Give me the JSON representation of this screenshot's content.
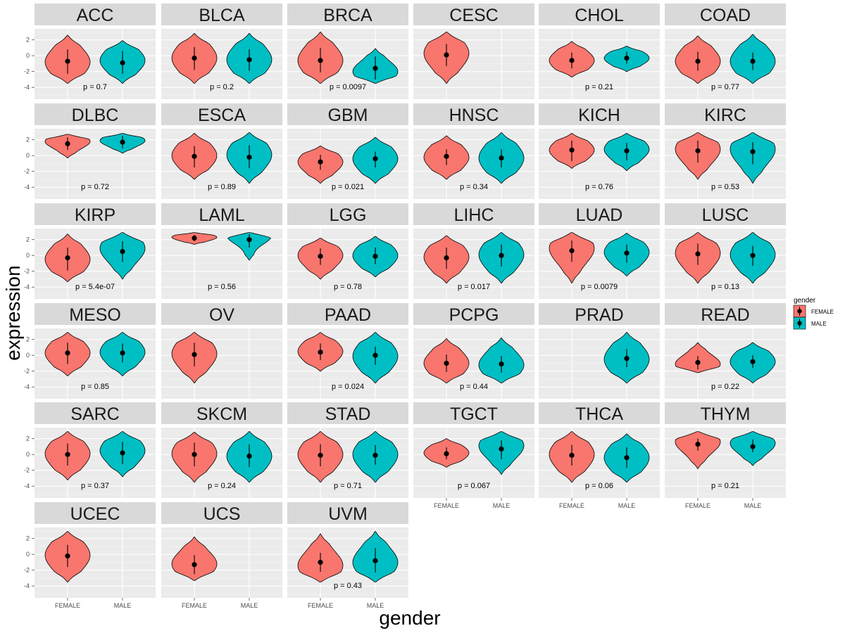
{
  "chart_data": {
    "type": "violin",
    "xlabel": "gender",
    "ylabel": "expression",
    "categories": [
      "FEMALE",
      "MALE"
    ],
    "ylim": [
      -5.5,
      3.4
    ],
    "yticks": [
      2,
      0,
      -2,
      -4
    ],
    "ytick_labels": [
      "2",
      "0",
      "-2",
      "-4"
    ],
    "legend": {
      "title": "gender",
      "position": "right",
      "entries": [
        {
          "label": "FEMALE",
          "color": "#F8766D"
        },
        {
          "label": "MALE",
          "color": "#00BFC4"
        }
      ]
    },
    "outline_color": "#000000",
    "panel_bg": "#ebebeb",
    "strip_bg": "#d9d9d9",
    "panels": [
      {
        "name": "ACC",
        "p": "p = 0.7",
        "female": {
          "min": -3.5,
          "max": 2.6,
          "point": -0.7,
          "lo": -2.3,
          "hi": 0.8,
          "peak": -0.8
        },
        "male": {
          "min": -3.5,
          "max": 1.9,
          "point": -0.9,
          "lo": -2.3,
          "hi": 0.6,
          "peak": -0.6
        }
      },
      {
        "name": "BLCA",
        "p": "p = 0.2",
        "female": {
          "min": -3.5,
          "max": 2.8,
          "point": -0.3,
          "lo": -1.8,
          "hi": 1.1,
          "peak": -0.3
        },
        "male": {
          "min": -3.5,
          "max": 2.8,
          "point": -0.5,
          "lo": -1.9,
          "hi": 0.8,
          "peak": -0.5
        }
      },
      {
        "name": "BRCA",
        "p": "p = 0.0097",
        "female": {
          "min": -3.5,
          "max": 3.0,
          "point": -0.6,
          "lo": -2.1,
          "hi": 1.0,
          "peak": -0.6
        },
        "male": {
          "min": -3.5,
          "max": 0.9,
          "point": -1.6,
          "lo": -3.0,
          "hi": -0.1,
          "peak": -2.0
        }
      },
      {
        "name": "CESC",
        "p": "",
        "female": {
          "min": -3.5,
          "max": 3.0,
          "point": 0.1,
          "lo": -1.3,
          "hi": 1.5,
          "peak": 0.3
        },
        "male": null
      },
      {
        "name": "CHOL",
        "p": "p = 0.21",
        "female": {
          "min": -2.7,
          "max": 1.8,
          "point": -0.6,
          "lo": -1.6,
          "hi": 0.4,
          "peak": -0.6
        },
        "male": {
          "min": -2.0,
          "max": 1.2,
          "point": -0.3,
          "lo": -1.0,
          "hi": 0.5,
          "peak": -0.3
        }
      },
      {
        "name": "COAD",
        "p": "p = 0.77",
        "female": {
          "min": -3.5,
          "max": 2.5,
          "point": -0.7,
          "lo": -1.9,
          "hi": 0.5,
          "peak": -0.7
        },
        "male": {
          "min": -3.5,
          "max": 2.7,
          "point": -0.7,
          "lo": -1.8,
          "hi": 0.4,
          "peak": -0.7
        }
      },
      {
        "name": "DLBC",
        "p": "p = 0.72",
        "female": {
          "min": -0.3,
          "max": 2.7,
          "point": 1.5,
          "lo": 0.7,
          "hi": 2.3,
          "peak": 1.8
        },
        "male": {
          "min": 0.3,
          "max": 2.8,
          "point": 1.7,
          "lo": 0.9,
          "hi": 2.5,
          "peak": 1.9
        }
      },
      {
        "name": "ESCA",
        "p": "p = 0.89",
        "female": {
          "min": -3.0,
          "max": 2.8,
          "point": -0.1,
          "lo": -1.5,
          "hi": 1.2,
          "peak": 0.0
        },
        "male": {
          "min": -3.5,
          "max": 2.9,
          "point": -0.2,
          "lo": -1.6,
          "hi": 1.3,
          "peak": 0.1
        }
      },
      {
        "name": "GBM",
        "p": "p = 0.021",
        "female": {
          "min": -3.5,
          "max": 1.2,
          "point": -0.8,
          "lo": -1.8,
          "hi": 0.1,
          "peak": -0.8
        },
        "male": {
          "min": -3.5,
          "max": 2.3,
          "point": -0.4,
          "lo": -1.5,
          "hi": 0.5,
          "peak": -0.4
        }
      },
      {
        "name": "HNSC",
        "p": "p = 0.34",
        "female": {
          "min": -3.0,
          "max": 2.5,
          "point": -0.1,
          "lo": -1.2,
          "hi": 0.8,
          "peak": -0.2
        },
        "male": {
          "min": -3.5,
          "max": 2.9,
          "point": -0.3,
          "lo": -1.5,
          "hi": 0.8,
          "peak": -0.3
        }
      },
      {
        "name": "KICH",
        "p": "p = 0.76",
        "female": {
          "min": -1.6,
          "max": 2.8,
          "point": 0.7,
          "lo": -0.7,
          "hi": 1.9,
          "peak": 0.7
        },
        "male": {
          "min": -1.9,
          "max": 2.8,
          "point": 0.6,
          "lo": -0.6,
          "hi": 1.6,
          "peak": 0.8
        }
      },
      {
        "name": "KIRC",
        "p": "p = 0.53",
        "female": {
          "min": -3.0,
          "max": 2.9,
          "point": 0.6,
          "lo": -0.9,
          "hi": 1.9,
          "peak": 0.8
        },
        "male": {
          "min": -3.5,
          "max": 2.9,
          "point": 0.5,
          "lo": -1.1,
          "hi": 1.7,
          "peak": 0.8
        }
      },
      {
        "name": "KIRP",
        "p": "p = 5.4e-07",
        "female": {
          "min": -3.3,
          "max": 2.7,
          "point": -0.3,
          "lo": -1.9,
          "hi": 1.0,
          "peak": -0.5
        },
        "male": {
          "min": -3.0,
          "max": 2.9,
          "point": 0.5,
          "lo": -0.8,
          "hi": 1.8,
          "peak": 0.9
        }
      },
      {
        "name": "LAML",
        "p": "p = 0.56",
        "female": {
          "min": 1.4,
          "max": 2.9,
          "point": 2.2,
          "lo": 1.8,
          "hi": 2.6,
          "peak": 2.3
        },
        "male": {
          "min": -0.6,
          "max": 2.9,
          "point": 2.0,
          "lo": 1.0,
          "hi": 2.7,
          "peak": 2.5
        }
      },
      {
        "name": "LGG",
        "p": "p = 0.78",
        "female": {
          "min": -3.0,
          "max": 2.2,
          "point": -0.1,
          "lo": -1.2,
          "hi": 0.9,
          "peak": 0.0
        },
        "male": {
          "min": -2.7,
          "max": 2.4,
          "point": -0.1,
          "lo": -1.1,
          "hi": 1.0,
          "peak": 0.0
        }
      },
      {
        "name": "LIHC",
        "p": "p = 0.017",
        "female": {
          "min": -3.5,
          "max": 2.5,
          "point": -0.3,
          "lo": -1.7,
          "hi": 1.0,
          "peak": -0.2
        },
        "male": {
          "min": -3.5,
          "max": 2.9,
          "point": 0.0,
          "lo": -1.4,
          "hi": 1.4,
          "peak": 0.1
        }
      },
      {
        "name": "LUAD",
        "p": "p = 0.0079",
        "female": {
          "min": -3.5,
          "max": 2.9,
          "point": 0.6,
          "lo": -0.8,
          "hi": 1.9,
          "peak": 0.9
        },
        "male": {
          "min": -2.6,
          "max": 2.8,
          "point": 0.3,
          "lo": -0.9,
          "hi": 1.4,
          "peak": 0.4
        }
      },
      {
        "name": "LUSC",
        "p": "p = 0.13",
        "female": {
          "min": -3.5,
          "max": 2.9,
          "point": 0.2,
          "lo": -1.2,
          "hi": 1.5,
          "peak": 0.3
        },
        "male": {
          "min": -3.5,
          "max": 2.9,
          "point": 0.0,
          "lo": -1.3,
          "hi": 1.2,
          "peak": 0.1
        }
      },
      {
        "name": "MESO",
        "p": "p = 0.85",
        "female": {
          "min": -2.6,
          "max": 2.9,
          "point": 0.3,
          "lo": -1.1,
          "hi": 1.6,
          "peak": 0.3
        },
        "male": {
          "min": -2.6,
          "max": 2.9,
          "point": 0.3,
          "lo": -0.9,
          "hi": 1.5,
          "peak": 0.4
        }
      },
      {
        "name": "OV",
        "p": "",
        "female": {
          "min": -3.5,
          "max": 2.9,
          "point": 0.1,
          "lo": -1.4,
          "hi": 1.6,
          "peak": 0.2
        },
        "male": null
      },
      {
        "name": "PAAD",
        "p": "p = 0.024",
        "female": {
          "min": -2.0,
          "max": 2.9,
          "point": 0.4,
          "lo": -0.6,
          "hi": 1.5,
          "peak": 0.5
        },
        "male": {
          "min": -3.5,
          "max": 2.9,
          "point": 0.0,
          "lo": -1.2,
          "hi": 1.1,
          "peak": -0.1
        }
      },
      {
        "name": "PCPG",
        "p": "p = 0.44",
        "female": {
          "min": -3.5,
          "max": 2.1,
          "point": -1.0,
          "lo": -2.1,
          "hi": 0.1,
          "peak": -1.0
        },
        "male": {
          "min": -3.5,
          "max": 2.2,
          "point": -1.1,
          "lo": -2.2,
          "hi": -0.1,
          "peak": -1.2
        }
      },
      {
        "name": "PRAD",
        "p": "",
        "female": null,
        "male": {
          "min": -3.5,
          "max": 2.9,
          "point": -0.4,
          "lo": -1.5,
          "hi": 0.8,
          "peak": -0.5
        }
      },
      {
        "name": "READ",
        "p": "p = 0.22",
        "female": {
          "min": -2.2,
          "max": 1.6,
          "point": -0.9,
          "lo": -1.8,
          "hi": -0.1,
          "peak": -1.1
        },
        "male": {
          "min": -3.5,
          "max": 1.6,
          "point": -0.8,
          "lo": -1.6,
          "hi": 0.0,
          "peak": -0.8
        }
      },
      {
        "name": "SARC",
        "p": "p = 0.37",
        "female": {
          "min": -3.2,
          "max": 2.9,
          "point": 0.0,
          "lo": -1.4,
          "hi": 1.4,
          "peak": 0.1
        },
        "male": {
          "min": -2.8,
          "max": 2.9,
          "point": 0.2,
          "lo": -1.2,
          "hi": 1.6,
          "peak": 0.5
        }
      },
      {
        "name": "SKCM",
        "p": "p = 0.24",
        "female": {
          "min": -3.5,
          "max": 2.8,
          "point": 0.0,
          "lo": -1.5,
          "hi": 1.5,
          "peak": 0.1
        },
        "male": {
          "min": -3.5,
          "max": 2.9,
          "point": -0.2,
          "lo": -1.6,
          "hi": 1.3,
          "peak": -0.2
        }
      },
      {
        "name": "STAD",
        "p": "p = 0.71",
        "female": {
          "min": -3.5,
          "max": 2.9,
          "point": -0.1,
          "lo": -1.5,
          "hi": 1.3,
          "peak": 0.0
        },
        "male": {
          "min": -3.5,
          "max": 2.9,
          "point": -0.1,
          "lo": -1.3,
          "hi": 1.2,
          "peak": 0.0
        }
      },
      {
        "name": "TGCT",
        "p": "p = 0.067",
        "female": {
          "min": -1.6,
          "max": 2.0,
          "point": 0.1,
          "lo": -0.6,
          "hi": 0.9,
          "peak": 0.2
        },
        "male": {
          "min": -2.5,
          "max": 2.9,
          "point": 0.7,
          "lo": -0.6,
          "hi": 1.8,
          "peak": 1.1
        }
      },
      {
        "name": "THCA",
        "p": "p = 0.06",
        "female": {
          "min": -3.5,
          "max": 2.9,
          "point": -0.1,
          "lo": -1.4,
          "hi": 1.2,
          "peak": 0.0
        },
        "male": {
          "min": -3.5,
          "max": 2.6,
          "point": -0.4,
          "lo": -1.7,
          "hi": 0.9,
          "peak": -0.4
        }
      },
      {
        "name": "THYM",
        "p": "p = 0.21",
        "female": {
          "min": -1.8,
          "max": 2.9,
          "point": 1.3,
          "lo": 0.5,
          "hi": 2.0,
          "peak": 1.6
        },
        "male": {
          "min": -1.4,
          "max": 2.9,
          "point": 1.0,
          "lo": 0.3,
          "hi": 1.9,
          "peak": 1.4
        }
      },
      {
        "name": "UCEC",
        "p": "",
        "female": {
          "min": -3.5,
          "max": 2.9,
          "point": -0.2,
          "lo": -1.6,
          "hi": 1.2,
          "peak": -0.1
        },
        "male": null
      },
      {
        "name": "UCS",
        "p": "",
        "female": {
          "min": -3.3,
          "max": 2.2,
          "point": -1.3,
          "lo": -2.5,
          "hi": -0.1,
          "peak": -1.2
        },
        "male": null
      },
      {
        "name": "UVM",
        "p": "p = 0.43",
        "female": {
          "min": -3.5,
          "max": 2.6,
          "point": -1.0,
          "lo": -2.2,
          "hi": 0.2,
          "peak": -1.4
        },
        "male": {
          "min": -3.5,
          "max": 2.9,
          "point": -0.8,
          "lo": -2.3,
          "hi": 0.8,
          "peak": -1.0
        }
      }
    ]
  }
}
